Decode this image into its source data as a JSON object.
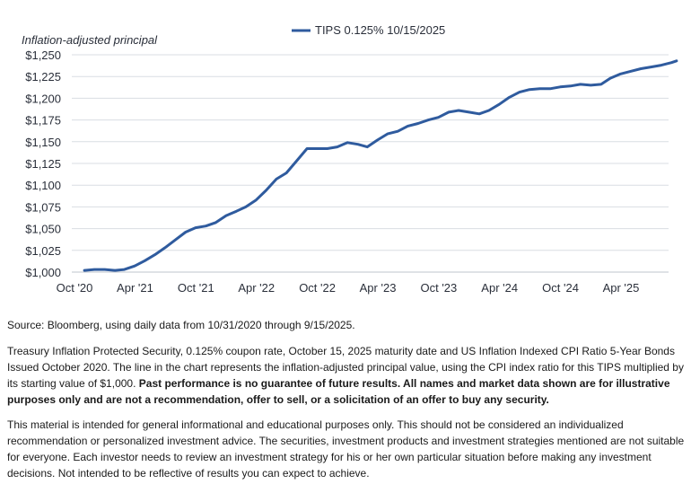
{
  "chart_data": {
    "type": "line",
    "legend": "TIPS 0.125% 10/15/2025",
    "legend_position": "top-center",
    "ylabel": "Inflation-adjusted principal",
    "xlabel": "",
    "ylim": [
      1000,
      1250
    ],
    "yticks": [
      1000,
      1025,
      1050,
      1075,
      1100,
      1125,
      1150,
      1175,
      1200,
      1225,
      1250
    ],
    "ytick_labels": [
      "$1,000",
      "$1,025",
      "$1,050",
      "$1,075",
      "$1,100",
      "$1,125",
      "$1,150",
      "$1,175",
      "$1,200",
      "$1,225",
      "$1,250"
    ],
    "xticks": [
      "2020-10-01",
      "2021-04-01",
      "2021-10-01",
      "2022-04-01",
      "2022-10-01",
      "2023-04-01",
      "2023-10-01",
      "2024-04-01",
      "2024-10-01",
      "2025-04-01"
    ],
    "xtick_labels": [
      "Oct '20",
      "Apr '21",
      "Oct '21",
      "Apr '22",
      "Oct '22",
      "Apr '23",
      "Oct '23",
      "Apr '24",
      "Oct '24",
      "Apr '25"
    ],
    "grid": "horizontal",
    "color": "#2f5b9e",
    "series": [
      {
        "name": "TIPS 0.125% 10/15/2025",
        "x": [
          "2020-10-31",
          "2020-11-30",
          "2020-12-31",
          "2021-01-31",
          "2021-02-28",
          "2021-03-31",
          "2021-04-30",
          "2021-05-31",
          "2021-06-30",
          "2021-07-31",
          "2021-08-31",
          "2021-09-30",
          "2021-10-31",
          "2021-11-30",
          "2021-12-31",
          "2022-01-31",
          "2022-02-28",
          "2022-03-31",
          "2022-04-30",
          "2022-05-31",
          "2022-06-30",
          "2022-07-31",
          "2022-08-31",
          "2022-09-30",
          "2022-10-31",
          "2022-11-30",
          "2022-12-31",
          "2023-01-31",
          "2023-02-28",
          "2023-03-31",
          "2023-04-30",
          "2023-05-31",
          "2023-06-30",
          "2023-07-31",
          "2023-08-31",
          "2023-09-30",
          "2023-10-31",
          "2023-11-30",
          "2023-12-31",
          "2024-01-31",
          "2024-02-29",
          "2024-03-31",
          "2024-04-30",
          "2024-05-31",
          "2024-06-30",
          "2024-07-31",
          "2024-08-31",
          "2024-09-30",
          "2024-10-31",
          "2024-11-30",
          "2024-12-31",
          "2025-01-31",
          "2025-02-28",
          "2025-03-31",
          "2025-04-30",
          "2025-05-31",
          "2025-06-30",
          "2025-07-31",
          "2025-08-31",
          "2025-09-15"
        ],
        "values": [
          1002,
          1003,
          1003,
          1002,
          1003,
          1007,
          1013,
          1020,
          1028,
          1037,
          1046,
          1051,
          1053,
          1057,
          1065,
          1070,
          1075,
          1083,
          1094,
          1107,
          1114,
          1128,
          1142,
          1142,
          1142,
          1144,
          1149,
          1147,
          1144,
          1152,
          1159,
          1162,
          1168,
          1171,
          1175,
          1178,
          1184,
          1186,
          1184,
          1182,
          1186,
          1193,
          1201,
          1207,
          1210,
          1211,
          1211,
          1213,
          1214,
          1216,
          1215,
          1216,
          1223,
          1228,
          1231,
          1234,
          1236,
          1238,
          1241,
          1243
        ]
      }
    ]
  },
  "notes": {
    "source": "Source: Bloomberg, using daily data from 10/31/2020 through 9/15/2025.",
    "description": "Treasury Inflation Protected Security, 0.125% coupon rate, October 15, 2025 maturity date and US Inflation Indexed CPI Ratio 5-Year Bonds Issued October 2020. The line in the chart represents the inflation-adjusted principal value, using the CPI index ratio for this TIPS multiplied by its starting value of $1,000.",
    "description_bold": "Past performance is no guarantee of future results. All names and market data shown are for illustrative purposes only and are not a recommendation, offer to sell, or a solicitation of an offer to buy any security.",
    "disclaimer": "This material is intended for general informational and educational purposes only. This should not be considered an individualized recommendation or personalized investment advice. The securities, investment products and investment strategies mentioned are not suitable for everyone. Each investor needs to review an investment strategy for his or her own particular situation before making any investment decisions. Not intended to be reflective of results you can expect to achieve."
  }
}
